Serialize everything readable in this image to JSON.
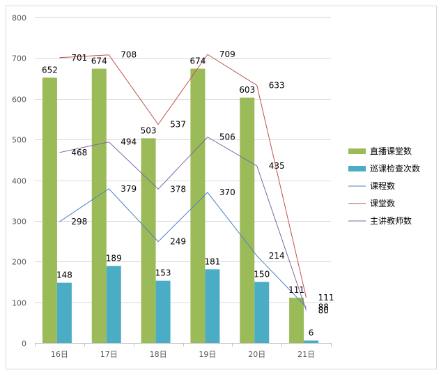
{
  "chart_data": {
    "type": "bar",
    "categories": [
      "16日",
      "17日",
      "18日",
      "19日",
      "20日",
      "21日"
    ],
    "ylim": [
      0,
      800
    ],
    "yticks": [
      0,
      100,
      200,
      300,
      400,
      500,
      600,
      700,
      800
    ],
    "grid": true,
    "legend_position": "right",
    "series": [
      {
        "name": "直播课堂数",
        "kind": "bar",
        "color": "#9bbb59",
        "values": [
          652,
          674,
          503,
          674,
          603,
          111
        ]
      },
      {
        "name": "巡课检查次数",
        "kind": "bar",
        "color": "#4bacc6",
        "values": [
          148,
          189,
          153,
          181,
          150,
          6
        ]
      },
      {
        "name": "课程数",
        "kind": "line",
        "color": "#4f81bd",
        "values": [
          298,
          379,
          249,
          370,
          214,
          88
        ]
      },
      {
        "name": "课堂数",
        "kind": "line",
        "color": "#c0504d",
        "values": [
          701,
          708,
          537,
          709,
          633,
          111
        ]
      },
      {
        "name": "主讲教师数",
        "kind": "line",
        "color": "#8064a2",
        "values": [
          468,
          494,
          378,
          506,
          435,
          80
        ]
      }
    ]
  }
}
